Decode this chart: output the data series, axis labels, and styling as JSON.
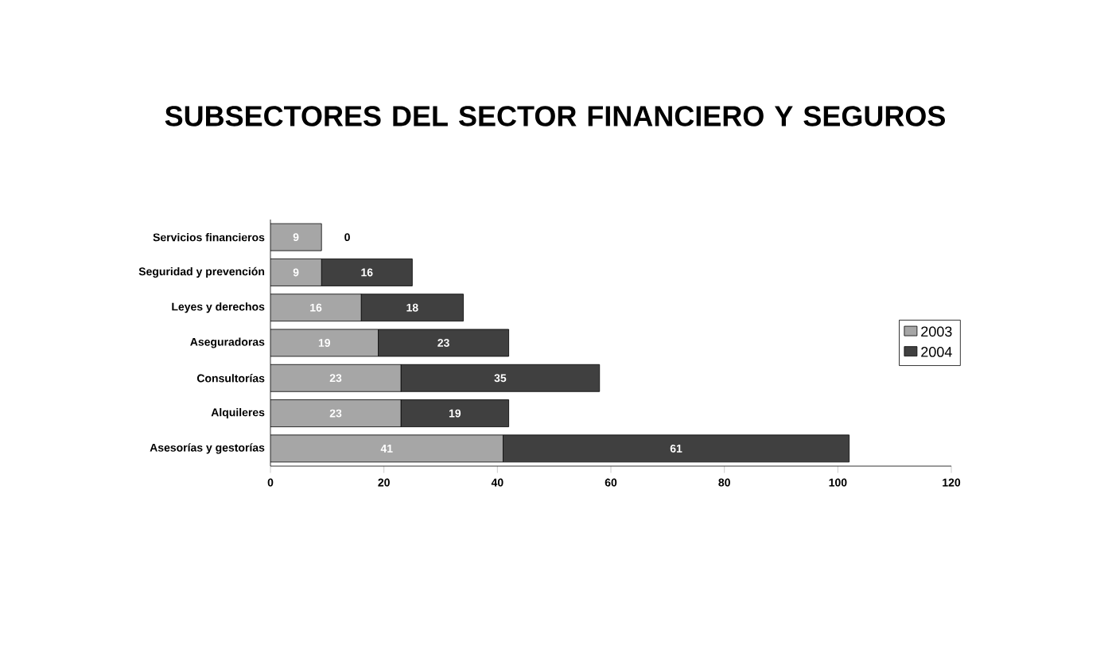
{
  "chart_data": {
    "type": "bar",
    "orientation": "horizontal",
    "stacked": true,
    "title": "SUBSECTORES DEL SECTOR FINANCIERO Y SEGUROS",
    "categories": [
      "Servicios financieros",
      "Seguridad y prevención",
      "Leyes y derechos",
      "Aseguradoras",
      "Consultorías",
      "Alquileres",
      "Asesorías y gestorías"
    ],
    "series": [
      {
        "name": "2003",
        "color": "#a6a6a6",
        "values": [
          9,
          9,
          16,
          19,
          23,
          23,
          41
        ]
      },
      {
        "name": "2004",
        "color": "#404040",
        "values": [
          0,
          16,
          18,
          23,
          35,
          19,
          61
        ]
      }
    ],
    "xlim": [
      0,
      120
    ],
    "xticks": [
      0,
      20,
      40,
      60,
      80,
      100,
      120
    ],
    "data_labels": true,
    "grid": false,
    "legend": "right"
  }
}
